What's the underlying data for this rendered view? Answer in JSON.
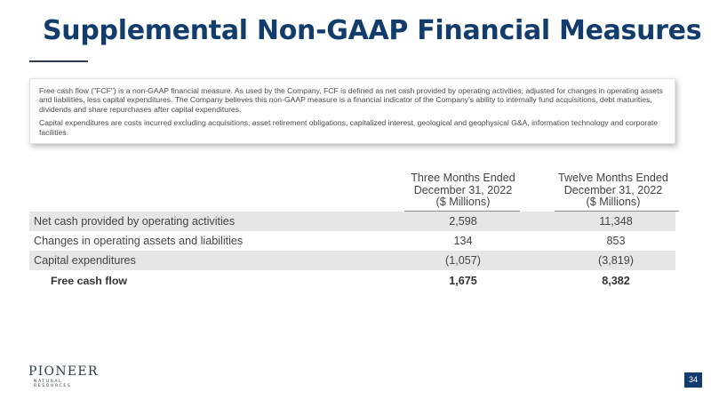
{
  "slide": {
    "title": "Supplemental Non-GAAP Financial Measures",
    "page_number": "34",
    "brand_color": "#123c6b"
  },
  "notes": {
    "paragraph_1": "Free cash flow (\"FCF\") is a non-GAAP financial measure. As used by the Company, FCF is defined as net cash provided by operating activities, adjusted for changes in operating assets and liabilities, less capital expenditures. The Company believes this non-GAAP measure is a financial indicator of the Company's ability to internally fund acquisitions, debt maturities, dividends and share repurchases after capital expenditures.",
    "paragraph_2": "Capital expenditures are costs incurred excluding acquisitions, asset retirement obligations, capitalized interest, geological and geophysical G&A, information technology and corporate facilities."
  },
  "table": {
    "columns": [
      {
        "line1": "Three Months Ended",
        "line2": "December 31, 2022",
        "line3": "($ Millions)"
      },
      {
        "line1": "Twelve Months Ended",
        "line2": "December 31, 2022",
        "line3": "($ Millions)"
      }
    ],
    "rows": [
      {
        "label": "Net cash provided by operating activities",
        "values": [
          "2,598",
          "11,348"
        ]
      },
      {
        "label": "Changes in operating assets and liabilities",
        "values": [
          "134",
          "853"
        ]
      },
      {
        "label": "Capital expenditures",
        "values": [
          "(1,057)",
          "(3,819)"
        ]
      },
      {
        "label": "Free cash flow",
        "values": [
          "1,675",
          "8,382"
        ]
      }
    ]
  },
  "logo": {
    "name": "PIONEER",
    "tagline": "NATURAL RESOURCES"
  }
}
